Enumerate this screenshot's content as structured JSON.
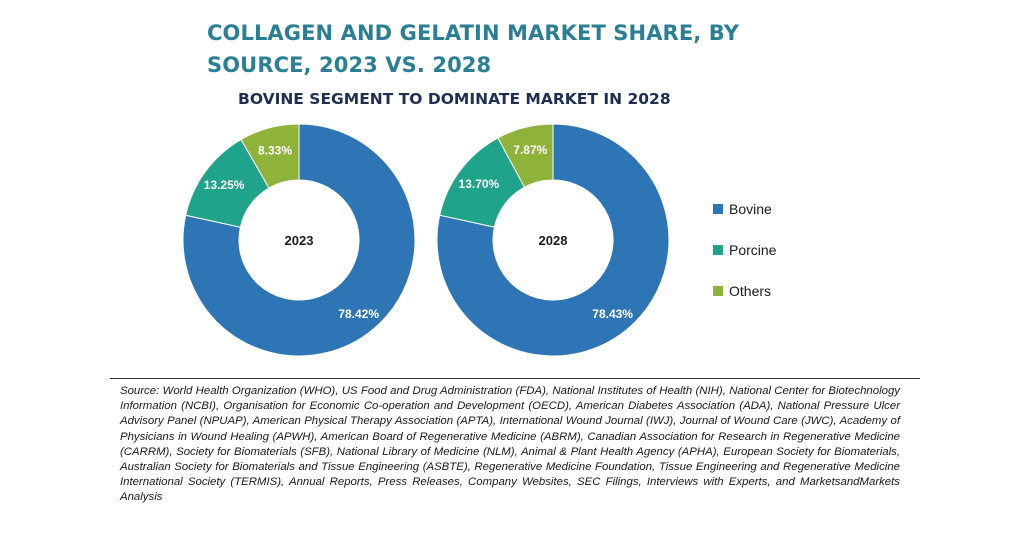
{
  "title": "COLLAGEN AND GELATIN MARKET SHARE, BY SOURCE, 2023 VS. 2028",
  "subtitle": "BOVINE SEGMENT TO DOMINATE MARKET IN 2028",
  "colors": {
    "Bovine": "#2e75b6",
    "Porcine": "#1fa38a",
    "Others": "#8fb33a",
    "title": "#2a7f94",
    "subtitle": "#1f2f52"
  },
  "chart_data": [
    {
      "type": "pie",
      "center_label": "2023",
      "categories": [
        "Bovine",
        "Porcine",
        "Others"
      ],
      "values": [
        78.42,
        13.25,
        8.33
      ],
      "value_labels": [
        "78.42%",
        "13.25%",
        "8.33%"
      ]
    },
    {
      "type": "pie",
      "center_label": "2028",
      "categories": [
        "Bovine",
        "Porcine",
        "Others"
      ],
      "values": [
        78.43,
        13.7,
        7.87
      ],
      "value_labels": [
        "78.43%",
        "13.70%",
        "7.87%"
      ]
    }
  ],
  "legend": {
    "items": [
      "Bovine",
      "Porcine",
      "Others"
    ],
    "position": "right"
  },
  "source": "Source: World Health Organization (WHO), US Food and Drug Administration (FDA), National Institutes of Health (NIH), National Center for Biotechnology Information (NCBI), Organisation for Economic Co-operation and Development (OECD), American Diabetes Association (ADA), National Pressure Ulcer Advisory Panel (NPUAP), American Physical Therapy Association (APTA), International Wound Journal (IWJ), Journal of Wound Care (JWC), Academy of Physicians in Wound Healing (APWH), American Board of Regenerative Medicine (ABRM), Canadian Association for Research in Regenerative Medicine (CARRM), Society for Biomaterials (SFB), National Library of Medicine (NLM), Animal & Plant Health Agency (APHA), European Society for Biomaterials, Australian Society for Biomaterials and Tissue Engineering (ASBTE), Regenerative Medicine Foundation, Tissue Engineering and Regenerative Medicine International Society (TERMIS), Annual Reports, Press Releases, Company Websites, SEC Filings, Interviews with Experts, and MarketsandMarkets Analysis"
}
